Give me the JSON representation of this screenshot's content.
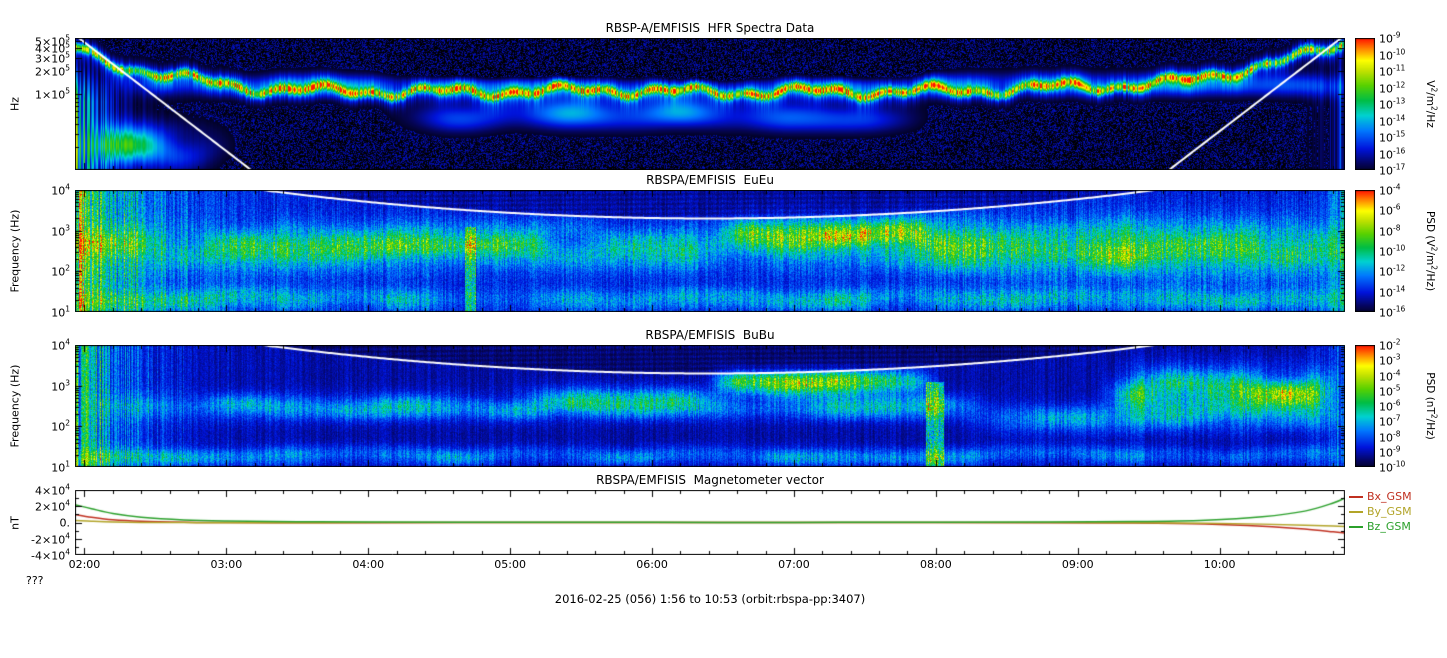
{
  "page": {
    "caption": "2016-02-25 (056) 1:56 to 10:53 (orbit:rbspa-pp:3407)",
    "footer_left": "???"
  },
  "time_axis": {
    "start_hour": 1.9333,
    "end_hour": 10.8833,
    "tick_hours": [
      2,
      3,
      4,
      5,
      6,
      7,
      8,
      9,
      10
    ],
    "tick_labels": [
      "02:00",
      "03:00",
      "04:00",
      "05:00",
      "06:00",
      "07:00",
      "08:00",
      "09:00",
      "10:00"
    ]
  },
  "chart_data": [
    {
      "type": "heatmap",
      "title": "RBSP-A/EMFISIS  HFR Spectra Data",
      "ylabel": "Hz",
      "yscale": "log",
      "ylim": [
        10000,
        550000
      ],
      "ytick_values": [
        500000,
        400000,
        300000,
        200000,
        100000
      ],
      "ytick_labels": [
        "5×10^5",
        "4×10^5",
        "3×10^5",
        "2×10^5",
        "1×10^5"
      ],
      "colorbar": {
        "label": "V^2/m^2/Hz",
        "tick_labels": [
          "10^-9",
          "10^-10",
          "10^-11",
          "10^-12",
          "10^-13",
          "10^-14",
          "10^-15",
          "10^-16",
          "10^-17"
        ]
      },
      "overlay_curve": "white upper-hybrid/cyclotron line, high at perigee edges, below panel mid-orbit",
      "features": [
        {
          "type": "striations",
          "tau": 0.22,
          "amp": 0.55,
          "top_logf": 4.9,
          "seed": 3
        },
        {
          "type": "striations",
          "mirror": true,
          "tau": 0.12,
          "amp": 0.3,
          "top_logf": 5.1,
          "seed": 4
        },
        {
          "type": "band",
          "t": [
            2.3,
            10.9
          ],
          "logf": [
            4.95,
            5.3
          ],
          "amp": 0.2,
          "patchy": true,
          "seed": 11
        },
        {
          "type": "band",
          "t": [
            4.3,
            7.8
          ],
          "logf": [
            4.5,
            4.95
          ],
          "amp": 0.3,
          "patchy": true,
          "seed": 12
        },
        {
          "type": "band",
          "t": [
            1.93,
            2.9
          ],
          "logf": [
            4.0,
            4.6
          ],
          "amp": 0.35,
          "patchy": true,
          "seed": 13
        },
        {
          "type": "dark",
          "t": [
            4.2,
            7.9
          ],
          "logf": [
            5.15,
            5.5
          ],
          "amp": 0.18,
          "seed": 14
        },
        {
          "type": "uh_line",
          "amp": 0.5
        }
      ]
    },
    {
      "type": "heatmap",
      "title": "RBSPA/EMFISIS  EuEu",
      "ylabel": "Frequency (Hz)",
      "yscale": "log",
      "ylim": [
        10,
        10000
      ],
      "ytick_values": [
        10000,
        1000,
        100,
        10
      ],
      "ytick_labels": [
        "10^4",
        "10^3",
        "10^2",
        "10^1"
      ],
      "colorbar": {
        "label": "PSD (V^2/m^2/Hz)",
        "tick_labels": [
          "10^-4",
          "10^-6",
          "10^-8",
          "10^-10",
          "10^-12",
          "10^-14",
          "10^-16"
        ]
      },
      "overlay_curve": "white fce line dipping to ~2 kHz near apogee",
      "features": [
        {
          "type": "striations",
          "tau": 0.45,
          "amp": 0.5,
          "seed": 21
        },
        {
          "type": "striations",
          "mirror": true,
          "tau": 0.1,
          "amp": 0.25,
          "seed": 22
        },
        {
          "type": "band",
          "t": [
            1.93,
            10.9
          ],
          "logf": [
            2.0,
            3.15
          ],
          "amp": 0.22,
          "patchy": true,
          "seed": 23
        },
        {
          "type": "band",
          "t": [
            2.9,
            5.2
          ],
          "logf": [
            2.1,
            3.0
          ],
          "amp": 0.13,
          "patchy": true,
          "seed": 24
        },
        {
          "type": "band",
          "t": [
            6.55,
            7.95
          ],
          "logf": [
            2.6,
            3.35
          ],
          "amp": 0.34,
          "patchy": true,
          "soft": 0.15,
          "seed": 25
        },
        {
          "type": "band",
          "t": [
            7.9,
            10.75
          ],
          "logf": [
            1.7,
            3.4
          ],
          "amp": 0.16,
          "patchy": true,
          "seed": 26
        },
        {
          "type": "band",
          "t": [
            1.93,
            10.9
          ],
          "logf": [
            1.0,
            1.6
          ],
          "amp": 0.18,
          "patchy": true,
          "seed": 27
        },
        {
          "type": "vstreak",
          "t": [
            4.68,
            4.76
          ],
          "logf": [
            1.0,
            3.1
          ],
          "amp": 0.25
        }
      ]
    },
    {
      "type": "heatmap",
      "title": "RBSPA/EMFISIS  BuBu",
      "ylabel": "Frequency (Hz)",
      "yscale": "log",
      "ylim": [
        10,
        10000
      ],
      "ytick_values": [
        10000,
        1000,
        100,
        10
      ],
      "ytick_labels": [
        "10^4",
        "10^3",
        "10^2",
        "10^1"
      ],
      "colorbar": {
        "label": "PSD (nT^2/Hz)",
        "tick_labels": [
          "10^-2",
          "10^-3",
          "10^-4",
          "10^-5",
          "10^-6",
          "10^-7",
          "10^-8",
          "10^-9",
          "10^-10"
        ]
      },
      "overlay_curve": "white fce line dipping near apogee",
      "features": [
        {
          "type": "striations",
          "tau": 0.35,
          "amp": 0.42,
          "seed": 31
        },
        {
          "type": "striations",
          "mirror": true,
          "tau": 0.1,
          "amp": 0.2,
          "seed": 32
        },
        {
          "type": "band",
          "t": [
            2.2,
            8.2
          ],
          "logf": [
            2.15,
            2.8
          ],
          "amp": 0.2,
          "patchy": true,
          "seed": 33
        },
        {
          "type": "band",
          "t": [
            5.2,
            6.45
          ],
          "logf": [
            2.3,
            3.0
          ],
          "amp": 0.18,
          "patchy": true,
          "seed": 34
        },
        {
          "type": "band",
          "t": [
            6.5,
            7.95
          ],
          "logf": [
            2.75,
            3.4
          ],
          "amp": 0.4,
          "patchy": true,
          "soft": 0.15,
          "seed": 35
        },
        {
          "type": "vstreak",
          "t": [
            7.93,
            8.06
          ],
          "logf": [
            1.0,
            3.1
          ],
          "amp": 0.3
        },
        {
          "type": "band",
          "t": [
            9.3,
            10.75
          ],
          "logf": [
            2.3,
            3.4
          ],
          "amp": 0.38,
          "patchy": true,
          "soft": 0.2,
          "seed": 36
        },
        {
          "type": "band",
          "t": [
            8.3,
            10.8
          ],
          "logf": [
            1.8,
            2.6
          ],
          "amp": 0.14,
          "patchy": true,
          "seed": 37
        },
        {
          "type": "band",
          "t": [
            1.93,
            10.9
          ],
          "logf": [
            1.0,
            1.5
          ],
          "amp": 0.16,
          "patchy": true,
          "seed": 38
        }
      ]
    },
    {
      "type": "line",
      "title": "RBSPA/EMFISIS  Magnetometer vector",
      "ylabel": "nT",
      "ylim": [
        -40000,
        40000
      ],
      "ytick_values": [
        40000,
        20000,
        0,
        -20000,
        -40000
      ],
      "ytick_labels": [
        "4×10^4",
        "2×10^4",
        "0.",
        "-2×10^4",
        "-4×10^4"
      ],
      "x_hours": [
        1.93,
        2.05,
        2.2,
        2.4,
        2.7,
        3.0,
        3.5,
        4.0,
        5.0,
        6.0,
        7.0,
        8.0,
        8.8,
        9.4,
        9.9,
        10.3,
        10.6,
        10.8,
        10.88
      ],
      "series": [
        {
          "name": "Bx_GSM",
          "color": "#c03020",
          "values": [
            10000,
            6500,
            3300,
            1400,
            300,
            -100,
            -250,
            -200,
            -120,
            -80,
            -60,
            -100,
            -250,
            -600,
            -1800,
            -4500,
            -8000,
            -11500,
            -13000
          ]
        },
        {
          "name": "By_GSM",
          "color": "#b2a428",
          "values": [
            2500,
            1500,
            600,
            100,
            -150,
            -200,
            -180,
            -140,
            -80,
            -50,
            -40,
            -70,
            -150,
            -350,
            -900,
            -2000,
            -3300,
            -4300,
            -4800
          ]
        },
        {
          "name": "Bz_GSM",
          "color": "#2ba02b",
          "values": [
            22000,
            17000,
            11000,
            6500,
            3200,
            1900,
            1000,
            650,
            300,
            180,
            150,
            250,
            500,
            1100,
            2800,
            7000,
            14000,
            24000,
            30000
          ]
        }
      ]
    }
  ]
}
